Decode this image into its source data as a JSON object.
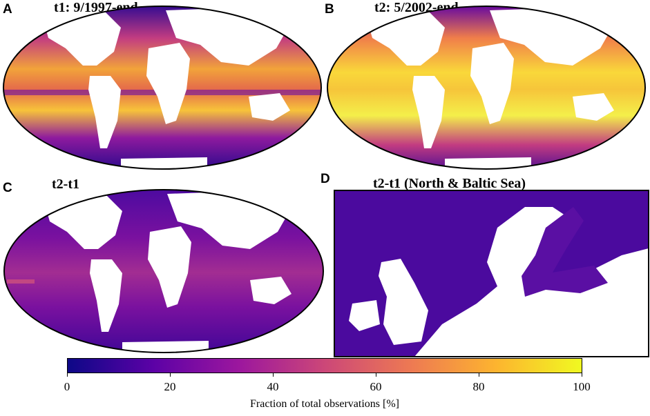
{
  "panels": [
    {
      "letter": "A",
      "title": "t1: 9/1997-end"
    },
    {
      "letter": "B",
      "title": "t2: 5/2002-end"
    },
    {
      "letter": "C",
      "title": "t2-t1"
    },
    {
      "letter": "D",
      "title": "t2-t1 (North & Baltic Sea)"
    }
  ],
  "colorbar": {
    "label": "Fraction of total  observations [%]",
    "ticks": [
      "0",
      "20",
      "40",
      "60",
      "80",
      "100"
    ],
    "colormap": [
      "#0d0887",
      "#5c01a6",
      "#9c179e",
      "#cc4778",
      "#ed7953",
      "#fdb42f",
      "#f0f921"
    ]
  },
  "colors": {
    "ocean_high": "#f7e225",
    "ocean_mid": "#e8743a",
    "ocean_low": "#3b0f8c",
    "land": "#ffffff"
  }
}
